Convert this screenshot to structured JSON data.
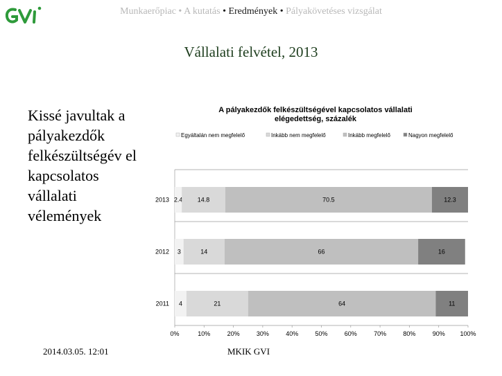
{
  "header": {
    "nav": [
      {
        "label": "Munkaerőpiac",
        "active": false
      },
      {
        "label": "A kutatás",
        "active": false
      },
      {
        "label": "Eredmények",
        "active": true
      },
      {
        "label": "Pályakövetéses vizsgálat",
        "active": false
      }
    ],
    "bullet": "•",
    "logo_icon": "gvi-logo-icon",
    "logo_color": "#2e9a3a"
  },
  "slide": {
    "title": "Vállalati felvétel, 2013",
    "side_text": "Kissé javultak a pályakezdők felkészültségév el kapcsolatos vállalati vélemények"
  },
  "footer": {
    "date": "2014.03.05. 12:01",
    "org": "MKIK GVI"
  },
  "chart_data": {
    "type": "bar",
    "orientation": "horizontal",
    "stacked": true,
    "title_line1": "A pályakezdők felkészültségével kapcsolatos vállalati",
    "title_line2": "elégedettség, százalék",
    "categories": [
      "2013",
      "2012",
      "2011"
    ],
    "series": [
      {
        "name": "Egyáltalán nem megfelelő",
        "color": "#f2f2f2",
        "values": [
          2.4,
          3,
          4
        ]
      },
      {
        "name": "Inkább nem megfelelő",
        "color": "#d9d9d9",
        "values": [
          14.8,
          14,
          21
        ]
      },
      {
        "name": "Inkább megfelelő",
        "color": "#bfbfbf",
        "values": [
          70.5,
          66,
          64
        ]
      },
      {
        "name": "Nagyon megfelelő",
        "color": "#808080",
        "values": [
          12.3,
          16,
          11
        ]
      }
    ],
    "data_labels": [
      [
        "2.4",
        "14.8",
        "70.5",
        "12.3"
      ],
      [
        "3",
        "14",
        "66",
        "16"
      ],
      [
        "4",
        "21",
        "64",
        "11"
      ]
    ],
    "x_ticks": [
      "0%",
      "10%",
      "20%",
      "30%",
      "40%",
      "50%",
      "60%",
      "70%",
      "80%",
      "90%",
      "100%"
    ],
    "xlim": [
      0,
      100
    ],
    "grid": true,
    "legend_position": "top"
  }
}
